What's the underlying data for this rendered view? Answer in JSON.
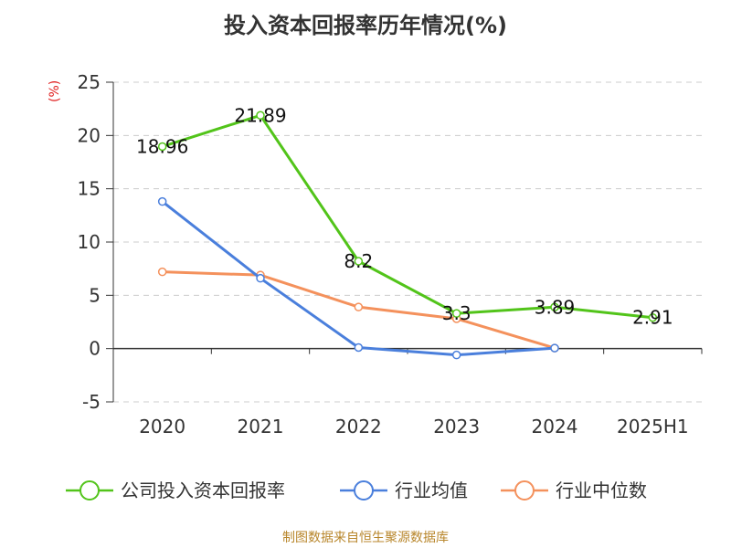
{
  "title": "投入资本回报率历年情况(%)",
  "source": "制图数据来自恒生聚源数据库",
  "chart_data": {
    "type": "line",
    "title": "投入资本回报率历年情况(%)",
    "ylabel": "(%)",
    "xlabel": "",
    "categories": [
      "2020",
      "2021",
      "2022",
      "2023",
      "2024",
      "2025H1"
    ],
    "ylim": [
      -5,
      25
    ],
    "yticks": [
      -5,
      0,
      5,
      10,
      15,
      20,
      25
    ],
    "grid": true,
    "legend": "bottom",
    "series": [
      {
        "name": "公司投入资本回报率",
        "color": "#52c41a",
        "values": [
          18.96,
          21.89,
          8.2,
          3.3,
          3.89,
          2.91
        ],
        "labels": [
          "18.96",
          "21.89",
          "8.2",
          "3.3",
          "3.89",
          "2.91"
        ]
      },
      {
        "name": "行业均值",
        "color": "#4a7fdc",
        "values": [
          13.8,
          6.6,
          0.1,
          -0.6,
          0.05,
          null
        ]
      },
      {
        "name": "行业中位数",
        "color": "#f4915c",
        "values": [
          7.2,
          6.9,
          3.9,
          2.8,
          0.05,
          null
        ]
      }
    ]
  }
}
